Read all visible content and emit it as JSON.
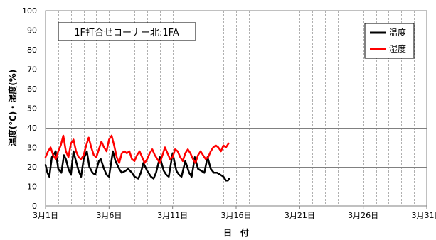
{
  "chart_data": {
    "type": "line",
    "annotation": "1F打合せコーナー北:1FA",
    "xlabel": "日　付",
    "ylabel": "温度(℃)・湿度(%)",
    "xlim": [
      1,
      31
    ],
    "ylim": [
      0,
      100
    ],
    "y_ticks": [
      0,
      10,
      20,
      30,
      40,
      50,
      60,
      70,
      80,
      90,
      100
    ],
    "x_ticks": [
      {
        "day": 1,
        "label": "3月1日"
      },
      {
        "day": 6,
        "label": "3月6日"
      },
      {
        "day": 11,
        "label": "3月11日"
      },
      {
        "day": 16,
        "label": "3月16日"
      },
      {
        "day": 21,
        "label": "3月21日"
      },
      {
        "day": 26,
        "label": "3月26日"
      },
      {
        "day": 31,
        "label": "3月31日"
      }
    ],
    "grid": true,
    "legend_position": "top-right",
    "series": [
      {
        "name": "温度",
        "color": "#000000",
        "x": [
          1.0,
          1.15,
          1.3,
          1.5,
          1.8,
          2.0,
          2.25,
          2.45,
          2.6,
          2.8,
          3.0,
          3.2,
          3.35,
          3.6,
          3.8,
          4.0,
          4.25,
          4.45,
          4.7,
          4.9,
          5.2,
          5.35,
          5.6,
          5.8,
          6.0,
          6.3,
          6.5,
          6.8,
          7.0,
          7.3,
          7.5,
          7.8,
          8.0,
          8.3,
          8.5,
          8.7,
          9.0,
          9.3,
          9.5,
          9.7,
          10.0,
          10.3,
          10.5,
          10.7,
          11.0,
          11.3,
          11.5,
          11.7,
          12.0,
          12.3,
          12.5,
          12.75,
          13.0,
          13.25,
          13.5,
          13.75,
          14.0,
          14.25,
          14.5,
          14.75,
          15.0,
          15.2,
          15.35,
          15.45
        ],
        "values": [
          21,
          17,
          15,
          25,
          28,
          19,
          17,
          26,
          24,
          19,
          16,
          28,
          24,
          18,
          15,
          24,
          28,
          20,
          17,
          16,
          23,
          24,
          19,
          16,
          15,
          28,
          23,
          19,
          17,
          18,
          19,
          17,
          15,
          14,
          17,
          22,
          18,
          15,
          14,
          17,
          25,
          18,
          16,
          15,
          27,
          18,
          16,
          15,
          23,
          17,
          15,
          25,
          19,
          18,
          17,
          25,
          19,
          17,
          17,
          16,
          15,
          13,
          13,
          14
        ]
      },
      {
        "name": "湿度",
        "color": "#ff0000",
        "x": [
          1.0,
          1.2,
          1.4,
          1.6,
          1.8,
          2.0,
          2.2,
          2.4,
          2.6,
          2.8,
          3.0,
          3.2,
          3.4,
          3.6,
          3.8,
          4.0,
          4.2,
          4.4,
          4.6,
          4.8,
          5.0,
          5.2,
          5.4,
          5.6,
          5.8,
          6.0,
          6.2,
          6.4,
          6.6,
          6.8,
          7.0,
          7.2,
          7.4,
          7.6,
          7.8,
          8.0,
          8.2,
          8.4,
          8.6,
          8.8,
          9.0,
          9.2,
          9.4,
          9.6,
          9.8,
          10.0,
          10.2,
          10.4,
          10.6,
          10.8,
          11.0,
          11.2,
          11.4,
          11.6,
          11.8,
          12.0,
          12.2,
          12.4,
          12.6,
          12.8,
          13.0,
          13.2,
          13.4,
          13.6,
          13.8,
          14.0,
          14.2,
          14.4,
          14.6,
          14.8,
          15.0,
          15.2,
          15.4
        ],
        "values": [
          25,
          28,
          30,
          26,
          24,
          28,
          31,
          36,
          28,
          25,
          32,
          34,
          28,
          25,
          24,
          26,
          31,
          35,
          30,
          26,
          25,
          29,
          33,
          30,
          28,
          34,
          36,
          31,
          25,
          22,
          27,
          28,
          27,
          28,
          24,
          23,
          26,
          28,
          25,
          22,
          24,
          27,
          29,
          26,
          24,
          22,
          26,
          30,
          27,
          24,
          25,
          29,
          28,
          25,
          23,
          27,
          29,
          27,
          24,
          22,
          26,
          28,
          26,
          24,
          25,
          28,
          30,
          31,
          30,
          28,
          31,
          30,
          32
        ]
      }
    ]
  }
}
